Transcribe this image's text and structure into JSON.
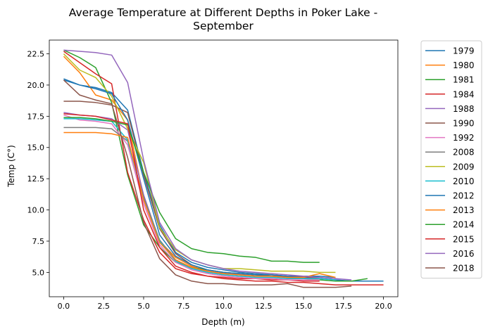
{
  "chart_data": {
    "type": "line",
    "title": "Average Temperature at Different Depths in Poker Lake -\nSeptember",
    "xlabel": "Depth (m)",
    "ylabel": "Temp (C°)",
    "xlim": [
      -0.9,
      20.9
    ],
    "ylim": [
      3.05,
      23.6
    ],
    "xticks": [
      0,
      2.5,
      5,
      7.5,
      10,
      12.5,
      15,
      17.5,
      20
    ],
    "xtick_labels": [
      "0.0",
      "2.5",
      "5.0",
      "7.5",
      "10.0",
      "12.5",
      "15.0",
      "17.5",
      "20.0"
    ],
    "yticks": [
      5,
      7.5,
      10,
      12.5,
      15,
      17.5,
      20,
      22.5
    ],
    "ytick_labels": [
      "5.0",
      "7.5",
      "10.0",
      "12.5",
      "15.0",
      "17.5",
      "20.0",
      "22.5"
    ],
    "grid": false,
    "legend_position": "outside-right",
    "series": [
      {
        "name": "1979",
        "color": "#1f77b4",
        "points": [
          [
            0,
            20.5
          ],
          [
            1,
            20.0
          ],
          [
            2,
            19.8
          ],
          [
            3,
            19.4
          ],
          [
            4,
            18.0
          ],
          [
            5,
            13.0
          ],
          [
            6,
            8.8
          ],
          [
            7,
            6.6
          ],
          [
            8,
            5.8
          ],
          [
            9,
            5.4
          ],
          [
            10,
            5.2
          ],
          [
            11,
            5.0
          ],
          [
            12,
            4.9
          ],
          [
            13,
            4.8
          ],
          [
            14,
            4.7
          ],
          [
            15,
            4.6
          ],
          [
            16,
            4.5
          ],
          [
            17,
            4.4
          ],
          [
            18,
            4.3
          ],
          [
            19,
            4.3
          ],
          [
            20,
            4.3
          ]
        ]
      },
      {
        "name": "1980",
        "color": "#ff7f0e",
        "points": [
          [
            0,
            22.3
          ],
          [
            1,
            21.0
          ],
          [
            2,
            19.2
          ],
          [
            3,
            18.8
          ],
          [
            4,
            17.2
          ],
          [
            5,
            11.0
          ],
          [
            6,
            7.5
          ],
          [
            7,
            6.2
          ],
          [
            8,
            5.5
          ],
          [
            9,
            5.1
          ],
          [
            10,
            4.9
          ],
          [
            11,
            4.8
          ],
          [
            12,
            4.7
          ],
          [
            13,
            4.7
          ],
          [
            14,
            4.6
          ],
          [
            15,
            4.6
          ]
        ]
      },
      {
        "name": "1981",
        "color": "#2ca02c",
        "points": [
          [
            0,
            22.8
          ],
          [
            1,
            22.2
          ],
          [
            2,
            21.4
          ],
          [
            3,
            18.6
          ],
          [
            4,
            12.8
          ],
          [
            5,
            8.8
          ],
          [
            6,
            7.0
          ],
          [
            7,
            5.8
          ],
          [
            8,
            5.4
          ],
          [
            9,
            5.2
          ],
          [
            10,
            5.0
          ],
          [
            11,
            4.9
          ],
          [
            12,
            4.8
          ],
          [
            13,
            4.7
          ],
          [
            14,
            4.6
          ],
          [
            15,
            4.5
          ],
          [
            16,
            4.4
          ],
          [
            17,
            4.3
          ],
          [
            18,
            4.3
          ],
          [
            19,
            4.5
          ]
        ]
      },
      {
        "name": "1984",
        "color": "#d62728",
        "points": [
          [
            0,
            22.7
          ],
          [
            1,
            21.8
          ],
          [
            2,
            20.9
          ],
          [
            3,
            20.1
          ],
          [
            4,
            13.0
          ],
          [
            5,
            9.2
          ],
          [
            6,
            6.6
          ],
          [
            7,
            5.3
          ],
          [
            8,
            4.9
          ],
          [
            9,
            4.7
          ],
          [
            10,
            4.6
          ],
          [
            11,
            4.5
          ],
          [
            12,
            4.5
          ],
          [
            13,
            4.4
          ],
          [
            14,
            4.4
          ],
          [
            15,
            4.3
          ],
          [
            16,
            4.3
          ]
        ]
      },
      {
        "name": "1988",
        "color": "#9467bd",
        "points": [
          [
            0,
            17.8
          ],
          [
            1,
            17.6
          ],
          [
            2,
            17.5
          ],
          [
            3,
            17.3
          ],
          [
            4,
            16.4
          ],
          [
            5,
            11.2
          ],
          [
            6,
            7.5
          ],
          [
            7,
            6.0
          ],
          [
            8,
            5.4
          ],
          [
            9,
            5.1
          ],
          [
            10,
            4.9
          ],
          [
            11,
            4.8
          ],
          [
            12,
            4.7
          ],
          [
            13,
            4.7
          ],
          [
            14,
            4.6
          ],
          [
            15,
            4.6
          ],
          [
            16,
            4.5
          ]
        ]
      },
      {
        "name": "1990",
        "color": "#8c564b",
        "points": [
          [
            0,
            18.7
          ],
          [
            1,
            18.7
          ],
          [
            2,
            18.6
          ],
          [
            3,
            18.4
          ],
          [
            4,
            17.8
          ],
          [
            5,
            12.8
          ],
          [
            6,
            8.5
          ],
          [
            7,
            6.5
          ],
          [
            8,
            5.6
          ],
          [
            9,
            5.2
          ],
          [
            10,
            5.0
          ],
          [
            11,
            4.9
          ],
          [
            12,
            4.8
          ],
          [
            13,
            4.7
          ],
          [
            14,
            4.7
          ],
          [
            15,
            4.6
          ],
          [
            16,
            4.6
          ]
        ]
      },
      {
        "name": "1992",
        "color": "#e377c2",
        "points": [
          [
            0,
            17.6
          ],
          [
            1,
            17.2
          ],
          [
            2,
            17.1
          ],
          [
            3,
            16.9
          ],
          [
            4,
            15.2
          ],
          [
            5,
            10.5
          ],
          [
            6,
            7.2
          ],
          [
            7,
            5.8
          ],
          [
            8,
            5.2
          ],
          [
            9,
            4.9
          ],
          [
            10,
            4.7
          ],
          [
            11,
            4.6
          ],
          [
            12,
            4.5
          ],
          [
            13,
            4.5
          ],
          [
            14,
            4.4
          ],
          [
            15,
            4.4
          ],
          [
            16,
            4.4
          ]
        ]
      },
      {
        "name": "2008",
        "color": "#7f7f7f",
        "points": [
          [
            0,
            16.6
          ],
          [
            1,
            16.6
          ],
          [
            2,
            16.6
          ],
          [
            3,
            16.5
          ],
          [
            4,
            15.5
          ],
          [
            5,
            11.0
          ],
          [
            6,
            7.6
          ],
          [
            7,
            6.0
          ],
          [
            8,
            5.3
          ],
          [
            9,
            5.0
          ],
          [
            10,
            4.8
          ],
          [
            11,
            4.7
          ],
          [
            12,
            4.6
          ],
          [
            13,
            4.6
          ],
          [
            14,
            4.5
          ],
          [
            15,
            4.5
          ],
          [
            16,
            4.5
          ]
        ]
      },
      {
        "name": "2009",
        "color": "#bcbd22",
        "points": [
          [
            0,
            22.5
          ],
          [
            1,
            21.2
          ],
          [
            2,
            20.6
          ],
          [
            3,
            19.1
          ],
          [
            4,
            16.5
          ],
          [
            5,
            13.8
          ],
          [
            6,
            8.6
          ],
          [
            7,
            6.8
          ],
          [
            8,
            6.0
          ],
          [
            9,
            5.6
          ],
          [
            10,
            5.3
          ],
          [
            11,
            5.3
          ],
          [
            12,
            5.2
          ],
          [
            13,
            5.1
          ],
          [
            14,
            5.1
          ],
          [
            15,
            5.1
          ],
          [
            16,
            5.0
          ],
          [
            17,
            5.0
          ]
        ]
      },
      {
        "name": "2010",
        "color": "#17becf",
        "points": [
          [
            0,
            17.3
          ],
          [
            1,
            17.3
          ],
          [
            2,
            17.2
          ],
          [
            3,
            17.1
          ],
          [
            4,
            15.6
          ],
          [
            5,
            10.8
          ],
          [
            6,
            7.5
          ],
          [
            7,
            5.9
          ],
          [
            8,
            5.3
          ],
          [
            9,
            5.0
          ],
          [
            10,
            4.8
          ],
          [
            11,
            4.7
          ],
          [
            12,
            4.6
          ],
          [
            13,
            4.6
          ],
          [
            14,
            4.5
          ],
          [
            15,
            4.5
          ],
          [
            16,
            4.5
          ],
          [
            17,
            4.4
          ]
        ]
      },
      {
        "name": "2012",
        "color": "#1f77b4",
        "points": [
          [
            0,
            20.4
          ],
          [
            1,
            20.0
          ],
          [
            2,
            19.7
          ],
          [
            3,
            19.3
          ],
          [
            4,
            17.2
          ],
          [
            5,
            12.5
          ],
          [
            6,
            8.0
          ],
          [
            7,
            6.3
          ],
          [
            8,
            5.6
          ],
          [
            9,
            5.2
          ],
          [
            10,
            5.0
          ],
          [
            11,
            4.9
          ],
          [
            12,
            4.8
          ],
          [
            13,
            4.8
          ],
          [
            14,
            4.7
          ],
          [
            15,
            4.7
          ],
          [
            16,
            4.7
          ],
          [
            17,
            4.6
          ]
        ]
      },
      {
        "name": "2013",
        "color": "#ff7f0e",
        "points": [
          [
            0,
            16.2
          ],
          [
            1,
            16.2
          ],
          [
            2,
            16.2
          ],
          [
            3,
            16.1
          ],
          [
            4,
            15.8
          ],
          [
            5,
            10.8
          ],
          [
            6,
            7.4
          ],
          [
            7,
            6.0
          ],
          [
            8,
            5.4
          ],
          [
            9,
            5.1
          ],
          [
            10,
            4.9
          ],
          [
            11,
            4.8
          ],
          [
            12,
            4.7
          ],
          [
            13,
            4.7
          ],
          [
            14,
            4.6
          ],
          [
            15,
            4.6
          ],
          [
            16,
            4.9
          ],
          [
            17,
            4.6
          ]
        ]
      },
      {
        "name": "2014",
        "color": "#2ca02c",
        "points": [
          [
            0,
            17.4
          ],
          [
            1,
            17.4
          ],
          [
            2,
            17.3
          ],
          [
            3,
            17.1
          ],
          [
            4,
            16.8
          ],
          [
            5,
            13.0
          ],
          [
            6,
            9.8
          ],
          [
            7,
            7.7
          ],
          [
            8,
            6.9
          ],
          [
            9,
            6.6
          ],
          [
            10,
            6.5
          ],
          [
            11,
            6.3
          ],
          [
            12,
            6.2
          ],
          [
            13,
            5.9
          ],
          [
            14,
            5.9
          ],
          [
            15,
            5.8
          ],
          [
            16,
            5.8
          ]
        ]
      },
      {
        "name": "2015",
        "color": "#d62728",
        "points": [
          [
            0,
            17.7
          ],
          [
            1,
            17.6
          ],
          [
            2,
            17.5
          ],
          [
            3,
            17.2
          ],
          [
            4,
            16.9
          ],
          [
            5,
            10.0
          ],
          [
            6,
            7.0
          ],
          [
            7,
            5.5
          ],
          [
            8,
            5.0
          ],
          [
            9,
            4.7
          ],
          [
            10,
            4.5
          ],
          [
            11,
            4.4
          ],
          [
            12,
            4.3
          ],
          [
            13,
            4.3
          ],
          [
            14,
            4.2
          ],
          [
            15,
            4.2
          ],
          [
            16,
            4.1
          ],
          [
            17,
            4.0
          ],
          [
            18,
            4.0
          ],
          [
            19,
            4.0
          ],
          [
            20,
            4.0
          ]
        ]
      },
      {
        "name": "2016",
        "color": "#9467bd",
        "points": [
          [
            0,
            22.8
          ],
          [
            1,
            22.7
          ],
          [
            2,
            22.6
          ],
          [
            3,
            22.4
          ],
          [
            4,
            20.2
          ],
          [
            5,
            14.0
          ],
          [
            6,
            9.0
          ],
          [
            7,
            6.9
          ],
          [
            8,
            6.0
          ],
          [
            9,
            5.6
          ],
          [
            10,
            5.3
          ],
          [
            11,
            5.1
          ],
          [
            12,
            5.0
          ],
          [
            13,
            4.9
          ],
          [
            14,
            4.8
          ],
          [
            15,
            4.7
          ],
          [
            16,
            4.6
          ],
          [
            17,
            4.5
          ],
          [
            18,
            4.4
          ]
        ]
      },
      {
        "name": "2018",
        "color": "#8c564b",
        "points": [
          [
            0,
            20.4
          ],
          [
            1,
            19.2
          ],
          [
            2,
            18.8
          ],
          [
            3,
            18.5
          ],
          [
            4,
            14.2
          ],
          [
            5,
            9.0
          ],
          [
            6,
            6.1
          ],
          [
            7,
            4.8
          ],
          [
            8,
            4.3
          ],
          [
            9,
            4.1
          ],
          [
            10,
            4.1
          ],
          [
            11,
            4.0
          ],
          [
            12,
            4.0
          ],
          [
            13,
            4.0
          ],
          [
            14,
            4.1
          ],
          [
            15,
            3.8
          ],
          [
            16,
            3.8
          ],
          [
            17,
            3.8
          ],
          [
            18,
            3.9
          ]
        ]
      }
    ]
  }
}
